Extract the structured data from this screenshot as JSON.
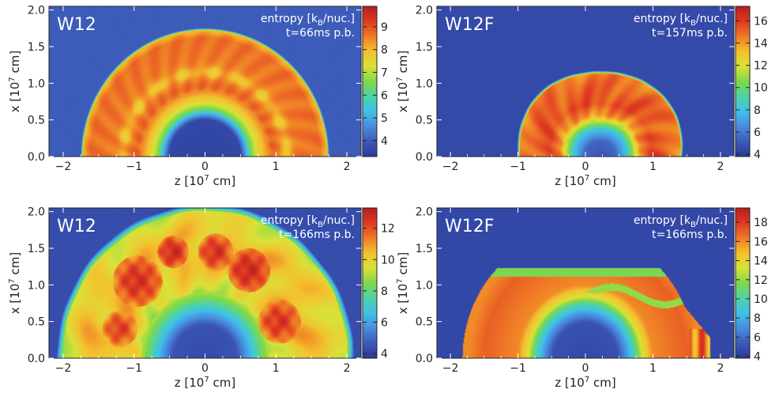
{
  "chart_data": [
    {
      "type": "heatmap",
      "panel_label": "W12",
      "annotation_line1": "entropy [kB/nuc.]",
      "annotation_line2": "t=66ms p.b.",
      "xlabel": "z [10^7 cm]",
      "ylabel": "x [10^7 cm]",
      "xlim": [
        -2.2,
        2.2
      ],
      "ylim": [
        0,
        2.05
      ],
      "xticks": [
        -2,
        -1,
        0,
        1,
        2
      ],
      "yticks": [
        0.0,
        0.5,
        1.0,
        1.5,
        2.0
      ],
      "colorbar_range": [
        3.3,
        9.9
      ],
      "colorbar_ticks": [
        4,
        5,
        6,
        7,
        8,
        9
      ],
      "field": {
        "background": 4.0,
        "radial_profile": [
          [
            0,
            3.5
          ],
          [
            0.5,
            3.6
          ],
          [
            0.58,
            5.0
          ],
          [
            0.65,
            6.5
          ],
          [
            0.75,
            7.5
          ],
          [
            0.95,
            8.8
          ],
          [
            1.3,
            8.6
          ],
          [
            1.62,
            8.7
          ],
          [
            1.72,
            8.0
          ],
          [
            1.75,
            4.0
          ]
        ],
        "dark_ring": {
          "radius": 1.15,
          "width": 0.09,
          "value": 7.6
        }
      }
    },
    {
      "type": "heatmap",
      "panel_label": "W12F",
      "annotation_line1": "entropy [kB/nuc.]",
      "annotation_line2": "t=157ms p.b.",
      "xlabel": "z [10^7 cm]",
      "ylabel": "x [10^7 cm]",
      "xlim": [
        -2.2,
        2.2
      ],
      "ylim": [
        0,
        2.05
      ],
      "xticks": [
        -2,
        -1,
        0,
        1,
        2
      ],
      "yticks": [
        0.0,
        0.5,
        1.0,
        1.5,
        2.0
      ],
      "colorbar_range": [
        3.8,
        17.3
      ],
      "colorbar_ticks": [
        4,
        6,
        8,
        10,
        12,
        14,
        16
      ],
      "field": {
        "background": 4.5,
        "shock_center_z": 0.22,
        "shock_radius": 1.22,
        "radial_profile": [
          [
            0,
            5.0
          ],
          [
            0.22,
            5.5
          ],
          [
            0.38,
            8.0
          ],
          [
            0.48,
            11.0
          ],
          [
            0.58,
            14.0
          ],
          [
            0.75,
            15.5
          ],
          [
            1.05,
            15.0
          ],
          [
            1.18,
            14.5
          ],
          [
            1.22,
            4.5
          ]
        ]
      }
    },
    {
      "type": "heatmap",
      "panel_label": "W12",
      "annotation_line1": "entropy [kB/nuc.]",
      "annotation_line2": "t=166ms p.b.",
      "xlabel": "z [10^7 cm]",
      "ylabel": "x [10^7 cm]",
      "xlim": [
        -2.2,
        2.2
      ],
      "ylim": [
        0,
        2.05
      ],
      "xticks": [
        -2,
        -1,
        0,
        1,
        2
      ],
      "yticks": [
        0.0,
        0.5,
        1.0,
        1.5,
        2.0
      ],
      "colorbar_range": [
        3.7,
        13.3
      ],
      "colorbar_ticks": [
        4,
        6,
        8,
        10,
        12
      ],
      "field": {
        "background": 4.3,
        "shock_radius": 2.1,
        "radial_profile": [
          [
            0,
            4.2
          ],
          [
            0.45,
            4.5
          ],
          [
            0.6,
            6.0
          ],
          [
            0.78,
            8.0
          ],
          [
            0.95,
            9.5
          ],
          [
            1.3,
            10.5
          ],
          [
            1.7,
            10.3
          ],
          [
            2.0,
            9.5
          ],
          [
            2.1,
            4.3
          ]
        ],
        "plumes": [
          {
            "z": -0.95,
            "x": 1.05,
            "r": 0.35,
            "value": 12.6
          },
          {
            "z": -0.45,
            "x": 1.45,
            "r": 0.22,
            "value": 12.8
          },
          {
            "z": 0.15,
            "x": 1.45,
            "r": 0.25,
            "value": 12.6
          },
          {
            "z": 0.62,
            "x": 1.2,
            "r": 0.3,
            "value": 12.8
          },
          {
            "z": 1.05,
            "x": 0.5,
            "r": 0.3,
            "value": 12.5
          },
          {
            "z": -1.2,
            "x": 0.4,
            "r": 0.25,
            "value": 12.3
          }
        ]
      }
    },
    {
      "type": "heatmap",
      "panel_label": "W12F",
      "annotation_line1": "entropy [kB/nuc.]",
      "annotation_line2": "t=166ms p.b.",
      "xlabel": "z [10^7 cm]",
      "ylabel": "x [10^7 cm]",
      "xlim": [
        -2.2,
        2.2
      ],
      "ylim": [
        0,
        2.05
      ],
      "xticks": [
        -2,
        -1,
        0,
        1,
        2
      ],
      "yticks": [
        0.0,
        0.5,
        1.0,
        1.5,
        2.0
      ],
      "colorbar_range": [
        3.8,
        19.5
      ],
      "colorbar_ticks": [
        4,
        6,
        8,
        10,
        12,
        14,
        16,
        18
      ],
      "field": {
        "background": 4.5,
        "shock_center_z": -0.1,
        "shock_radius": 1.72,
        "x_cap": 1.23,
        "radial_profile": [
          [
            0,
            4.5
          ],
          [
            0.48,
            5.0
          ],
          [
            0.62,
            7.5
          ],
          [
            0.75,
            10.5
          ],
          [
            0.85,
            13.5
          ],
          [
            1.0,
            16.0
          ],
          [
            1.5,
            17.0
          ],
          [
            1.72,
            16.0
          ]
        ]
      }
    }
  ],
  "colors": {
    "colormap_stops": [
      "#2b3a99",
      "#3d59b8",
      "#4a8de0",
      "#3fc1e8",
      "#4fd2a8",
      "#7fd84a",
      "#d9e23a",
      "#f3c22e",
      "#ef7a26",
      "#df3a22",
      "#b61f1f"
    ],
    "background_field": "#3b4fa8",
    "text_on_plot": "#ffffff",
    "axis": "#222222"
  }
}
